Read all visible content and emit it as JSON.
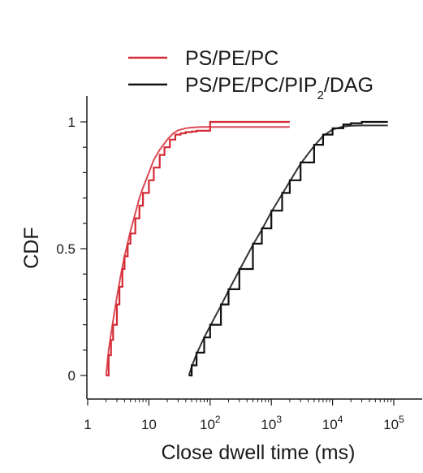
{
  "chart_data": {
    "type": "line",
    "title": "",
    "xlabel": "Close dwell time (ms)",
    "ylabel": "CDF",
    "xscale": "log",
    "xlim": [
      1,
      100000
    ],
    "ylim": [
      0,
      1
    ],
    "x_ticks": [
      {
        "value": 1,
        "base": "1",
        "exp": ""
      },
      {
        "value": 10,
        "base": "10",
        "exp": ""
      },
      {
        "value": 100,
        "base": "10",
        "exp": "2"
      },
      {
        "value": 1000,
        "base": "10",
        "exp": "3"
      },
      {
        "value": 10000,
        "base": "10",
        "exp": "4"
      },
      {
        "value": 100000,
        "base": "10",
        "exp": "5"
      }
    ],
    "y_ticks": [
      {
        "value": 0,
        "label": "0"
      },
      {
        "value": 0.5,
        "label": "0.5"
      },
      {
        "value": 1,
        "label": "1"
      }
    ],
    "legend": {
      "placement": "top-right",
      "entries": [
        {
          "series": 0,
          "text": "PS/PE/PC"
        },
        {
          "series": 1,
          "text_main": "PS/PE/PC/PIP",
          "text_sub": "2",
          "text_after": "/DAG"
        }
      ]
    },
    "series": [
      {
        "name": "PS/PE/PC",
        "color": "#d42a35",
        "empirical": {
          "x": [
            2,
            2.2,
            2.4,
            2.6,
            3,
            3.3,
            3.7,
            4,
            4.5,
            5,
            6,
            7,
            8,
            10,
            12,
            15,
            18,
            22,
            27,
            33,
            40,
            50,
            60,
            75,
            95,
            100,
            2000
          ],
          "y": [
            0,
            0.08,
            0.14,
            0.2,
            0.28,
            0.35,
            0.42,
            0.47,
            0.52,
            0.56,
            0.62,
            0.67,
            0.72,
            0.77,
            0.82,
            0.87,
            0.9,
            0.93,
            0.95,
            0.955,
            0.96,
            0.962,
            0.965,
            0.965,
            0.965,
            1.0,
            1.0
          ]
        },
        "fit": {
          "x": [
            2,
            2.2,
            2.5,
            3,
            3.5,
            4,
            5,
            6,
            7,
            8,
            10,
            12,
            15,
            20,
            25,
            30,
            40,
            50,
            70,
            100,
            2000
          ],
          "y": [
            0,
            0.1,
            0.19,
            0.31,
            0.4,
            0.47,
            0.57,
            0.64,
            0.7,
            0.74,
            0.8,
            0.85,
            0.89,
            0.93,
            0.955,
            0.967,
            0.975,
            0.978,
            0.98,
            0.98,
            0.98
          ]
        }
      },
      {
        "name": "PS/PE/PC/PIP2/DAG",
        "color": "#111111",
        "empirical": {
          "x": [
            45,
            50,
            60,
            80,
            100,
            150,
            200,
            300,
            500,
            700,
            1000,
            1500,
            2000,
            3000,
            5000,
            7000,
            10000,
            15000,
            20000,
            30000,
            50000,
            80000
          ],
          "y": [
            0,
            0.04,
            0.09,
            0.15,
            0.2,
            0.28,
            0.34,
            0.42,
            0.52,
            0.58,
            0.65,
            0.72,
            0.77,
            0.84,
            0.91,
            0.95,
            0.975,
            0.99,
            0.995,
            1.0,
            1.0,
            1.0
          ]
        },
        "fit": {
          "x": [
            45,
            50,
            60,
            80,
            100,
            150,
            200,
            300,
            500,
            700,
            1000,
            1500,
            2000,
            3000,
            5000,
            7000,
            10000,
            15000,
            20000,
            30000,
            50000,
            80000
          ],
          "y": [
            0,
            0.035,
            0.085,
            0.15,
            0.195,
            0.275,
            0.335,
            0.415,
            0.515,
            0.575,
            0.645,
            0.715,
            0.765,
            0.835,
            0.905,
            0.945,
            0.97,
            0.982,
            0.985,
            0.986,
            0.986,
            0.986
          ]
        }
      }
    ]
  }
}
